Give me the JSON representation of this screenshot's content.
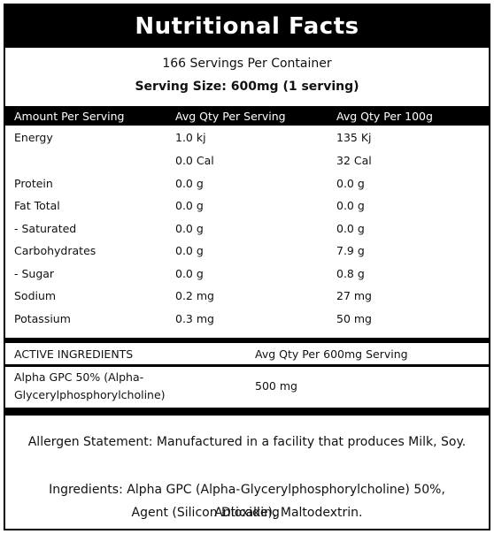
{
  "title": "Nutritional Facts",
  "servings_per_container": "166 Servings Per Container",
  "serving_size": "Serving Size: 600mg (1 serving)",
  "nutrition_table": {
    "headers": [
      "Amount Per Serving",
      "Avg Qty Per Serving",
      "Avg Qty Per 100g"
    ],
    "rows": [
      {
        "name": "Energy",
        "per_serving": "1.0 kj",
        "per_100g": "135 Kj"
      },
      {
        "name": "",
        "per_serving": "0.0 Cal",
        "per_100g": "32 Cal"
      },
      {
        "name": "Protein",
        "per_serving": "0.0 g",
        "per_100g": "0.0 g"
      },
      {
        "name": "Fat Total",
        "per_serving": "0.0 g",
        "per_100g": "0.0 g"
      },
      {
        "name": "- Saturated",
        "per_serving": "0.0 g",
        "per_100g": "0.0 g"
      },
      {
        "name": "Carbohydrates",
        "per_serving": "0.0 g",
        "per_100g": "7.9 g"
      },
      {
        "name": "- Sugar",
        "per_serving": "0.0 g",
        "per_100g": "0.8 g"
      },
      {
        "name": "Sodium",
        "per_serving": "0.2 mg",
        "per_100g": "27 mg"
      },
      {
        "name": "Potassium",
        "per_serving": "0.3 mg",
        "per_100g": "50 mg"
      }
    ]
  },
  "active_ingredients": {
    "headers": [
      "ACTIVE INGREDIENTS",
      "Avg Qty Per 600mg Serving"
    ],
    "rows": [
      {
        "name_line1": "Alpha GPC 50% (Alpha-",
        "name_line2": "Glycerylphosphorylcholine)",
        "qty": "500 mg"
      }
    ]
  },
  "allergen_statement": "Allergen Statement: Manufactured in a facility that produces Milk, Soy.",
  "ingredients_line1": "Ingredients: Alpha GPC (Alpha-Glycerylphosphorylcholine) 50%, Anticaking",
  "ingredients_line2": "Agent (Silicon Dioxide), Maltodextrin."
}
